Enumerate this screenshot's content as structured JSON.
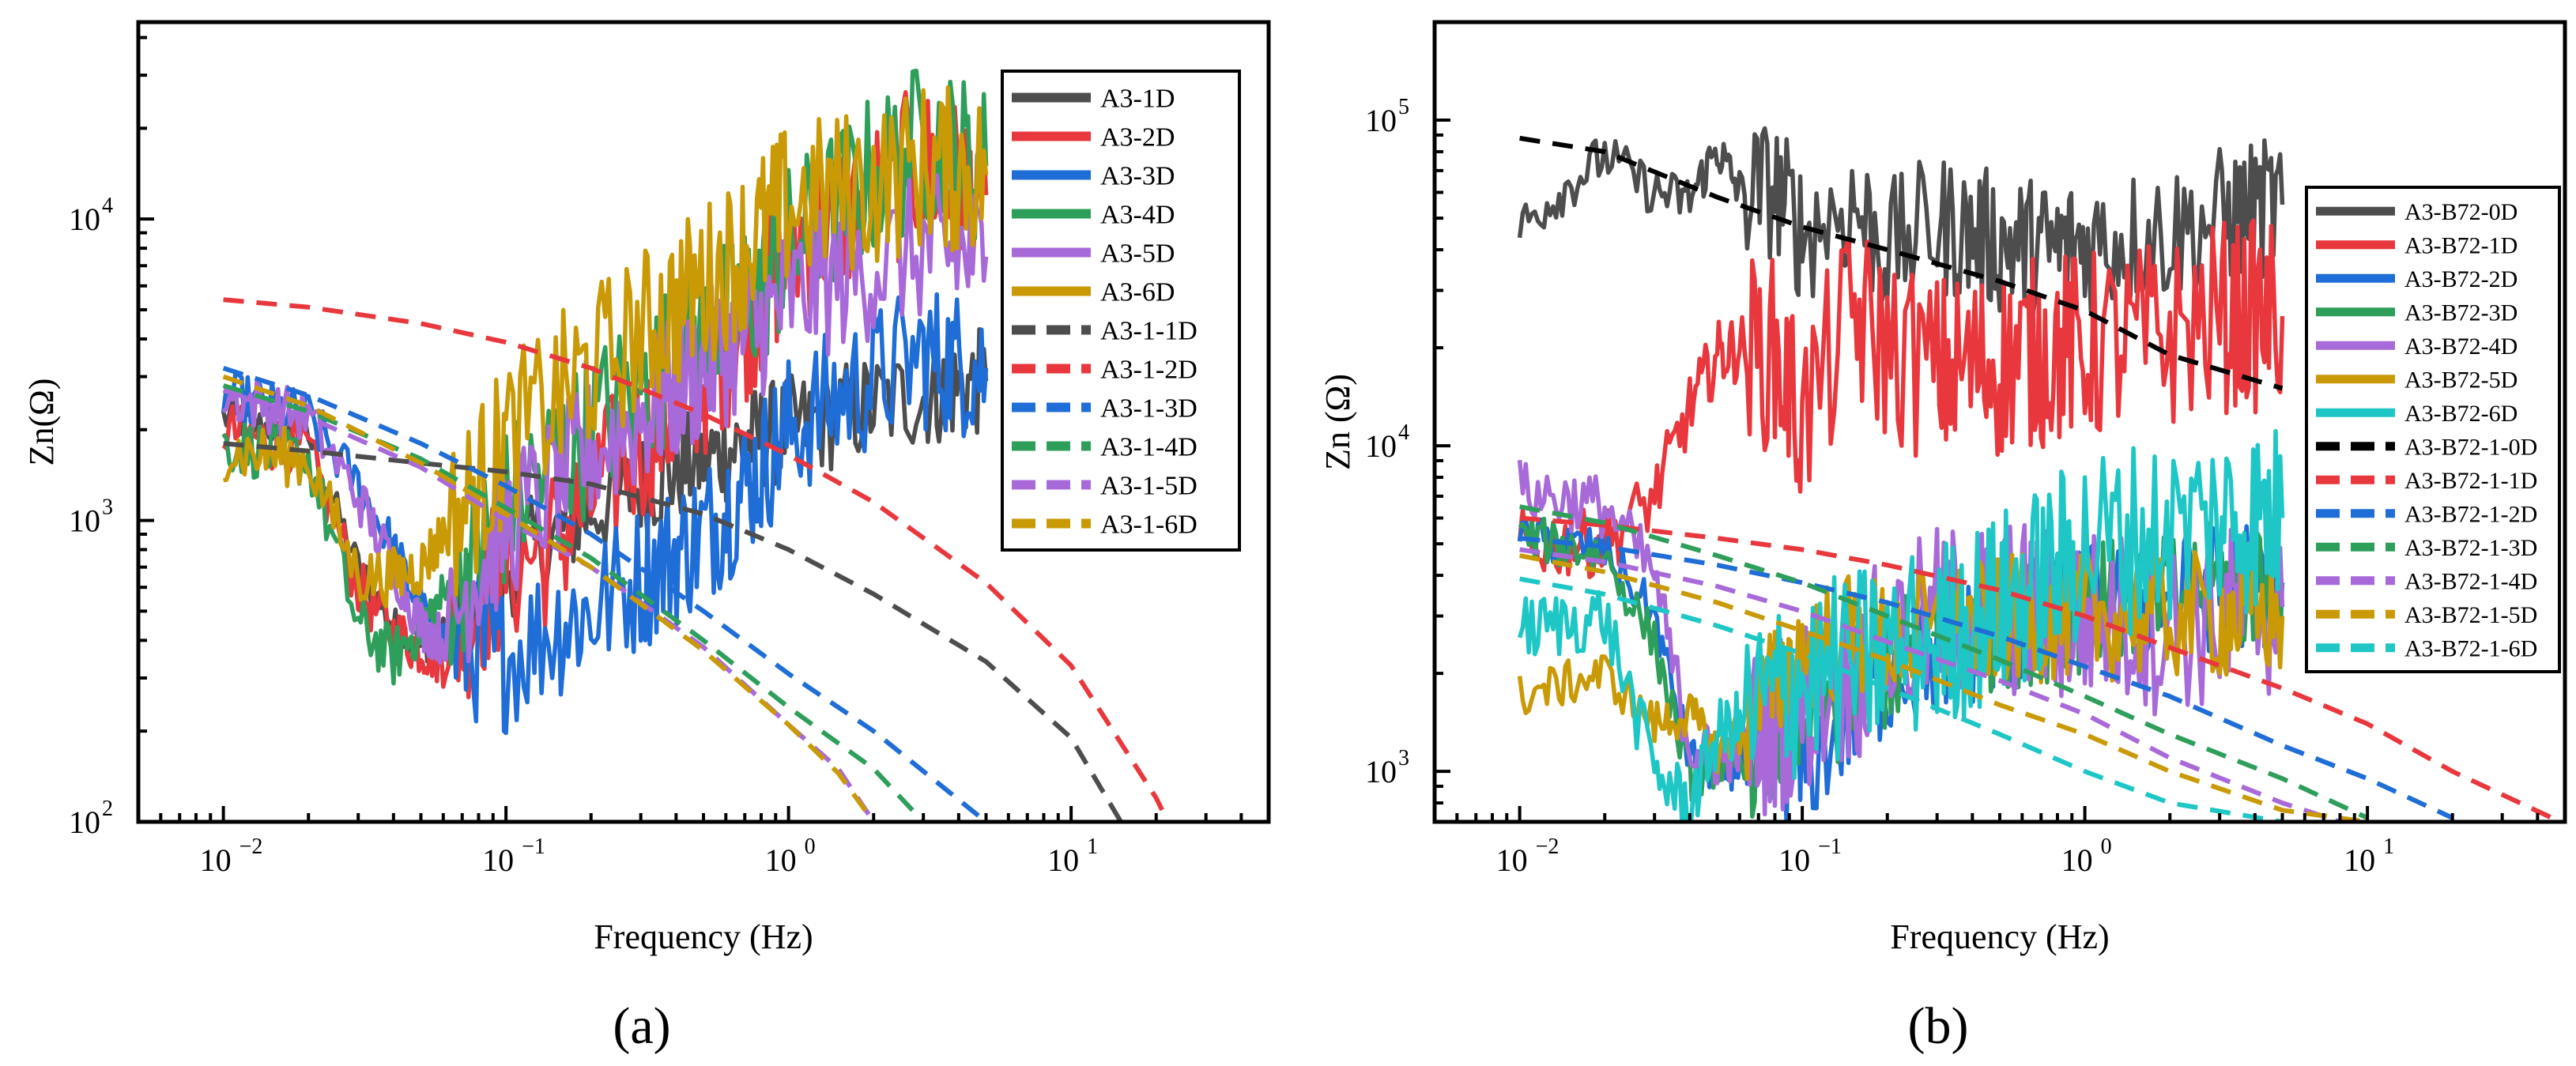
{
  "chart_data": [
    {
      "type": "line",
      "panel_label": "(a)",
      "xlabel": "Frequency (Hz)",
      "ylabel": "Zn(Ω)",
      "xscale": "log",
      "yscale": "log",
      "xlim": [
        0.005,
        50
      ],
      "ylim": [
        100,
        45000
      ],
      "x_ticks": [
        {
          "value": 0.01,
          "base": "10",
          "exp": "−2"
        },
        {
          "value": 0.1,
          "base": "10",
          "exp": "−1"
        },
        {
          "value": 1,
          "base": "10",
          "exp": "0"
        },
        {
          "value": 10,
          "base": "10",
          "exp": "1"
        }
      ],
      "y_ticks": [
        {
          "value": 100,
          "base": "10",
          "exp": "2"
        },
        {
          "value": 1000,
          "base": "10",
          "exp": "3"
        },
        {
          "value": 10000,
          "base": "10",
          "exp": "4"
        }
      ],
      "legend_position": "top-right",
      "series": [
        {
          "name": "A3-1D",
          "color": "#4d4d4d",
          "style": "solid",
          "x": [
            0.01,
            0.02,
            0.03,
            0.04,
            0.05,
            0.06,
            0.08,
            0.1,
            0.15,
            0.2,
            0.3,
            0.5,
            0.8,
            1,
            2,
            3,
            5
          ],
          "y": [
            2200,
            1900,
            700,
            450,
            380,
            420,
            550,
            700,
            900,
            1100,
            1300,
            1600,
            1900,
            2000,
            2400,
            2600,
            2900
          ],
          "noise": 0.18
        },
        {
          "name": "A3-2D",
          "color": "#e8383d",
          "style": "solid",
          "x": [
            0.01,
            0.02,
            0.03,
            0.04,
            0.05,
            0.06,
            0.08,
            0.1,
            0.15,
            0.2,
            0.3,
            0.5,
            0.8,
            1,
            2,
            3,
            5
          ],
          "y": [
            2000,
            1700,
            600,
            420,
            380,
            350,
            550,
            700,
            850,
            1200,
            1800,
            3000,
            5500,
            8000,
            12000,
            15000,
            12000
          ],
          "noise": 0.28
        },
        {
          "name": "A3-3D",
          "color": "#1f6dd6",
          "style": "solid",
          "x": [
            0.01,
            0.02,
            0.03,
            0.04,
            0.05,
            0.06,
            0.08,
            0.1,
            0.15,
            0.2,
            0.3,
            0.5,
            0.8,
            1,
            2,
            3,
            5
          ],
          "y": [
            2600,
            2200,
            1300,
            800,
            500,
            400,
            370,
            350,
            450,
            500,
            650,
            900,
            1500,
            2000,
            3000,
            3500,
            3200
          ],
          "noise": 0.25
        },
        {
          "name": "A3-4D",
          "color": "#2e9e5b",
          "style": "solid",
          "x": [
            0.01,
            0.02,
            0.03,
            0.04,
            0.05,
            0.06,
            0.08,
            0.1,
            0.15,
            0.2,
            0.3,
            0.5,
            0.8,
            1,
            2,
            3,
            5
          ],
          "y": [
            1800,
            1600,
            450,
            350,
            450,
            550,
            800,
            1100,
            1600,
            2000,
            2800,
            4000,
            6000,
            8000,
            14000,
            18000,
            15000
          ],
          "noise": 0.28
        },
        {
          "name": "A3-5D",
          "color": "#a86ad9",
          "style": "solid",
          "x": [
            0.01,
            0.02,
            0.03,
            0.04,
            0.05,
            0.06,
            0.08,
            0.1,
            0.15,
            0.2,
            0.3,
            0.5,
            0.8,
            1,
            2,
            3,
            5
          ],
          "y": [
            2600,
            2200,
            1200,
            700,
            450,
            400,
            700,
            950,
            1300,
            1700,
            2200,
            3200,
            4500,
            5500,
            7000,
            8000,
            7500
          ],
          "noise": 0.25
        },
        {
          "name": "A3-6D",
          "color": "#c99a06",
          "style": "solid",
          "x": [
            0.01,
            0.02,
            0.03,
            0.04,
            0.05,
            0.06,
            0.08,
            0.1,
            0.15,
            0.2,
            0.3,
            0.5,
            0.8,
            1,
            2,
            3,
            5
          ],
          "y": [
            1700,
            1600,
            650,
            650,
            700,
            900,
            1300,
            1800,
            2500,
            3200,
            4200,
            6000,
            9000,
            11000,
            13000,
            15000,
            14000
          ],
          "noise": 0.28
        },
        {
          "name": "A3-1-1D",
          "color": "#4d4d4d",
          "style": "dashed",
          "x": [
            0.01,
            0.02,
            0.05,
            0.1,
            0.2,
            0.5,
            1,
            2,
            5,
            10,
            15
          ],
          "y": [
            1800,
            1700,
            1550,
            1450,
            1320,
            1050,
            800,
            570,
            340,
            190,
            100
          ]
        },
        {
          "name": "A3-1-2D",
          "color": "#e8383d",
          "style": "dashed",
          "x": [
            0.01,
            0.02,
            0.05,
            0.1,
            0.2,
            0.5,
            1,
            2,
            5,
            10,
            20,
            22
          ],
          "y": [
            5400,
            5100,
            4500,
            3900,
            3200,
            2250,
            1650,
            1150,
            620,
            330,
            120,
            100
          ]
        },
        {
          "name": "A3-1-3D",
          "color": "#1f6dd6",
          "style": "dashed",
          "x": [
            0.01,
            0.02,
            0.05,
            0.1,
            0.2,
            0.5,
            1,
            2,
            5
          ],
          "y": [
            3200,
            2600,
            1800,
            1300,
            900,
            500,
            310,
            200,
            100
          ]
        },
        {
          "name": "A3-1-4D",
          "color": "#2e9e5b",
          "style": "dashed",
          "x": [
            0.01,
            0.02,
            0.05,
            0.1,
            0.2,
            0.5,
            1,
            2,
            3
          ],
          "y": [
            2800,
            2300,
            1600,
            1100,
            750,
            400,
            240,
            150,
            100
          ]
        },
        {
          "name": "A3-1-5D",
          "color": "#a86ad9",
          "style": "dashed",
          "x": [
            0.01,
            0.02,
            0.05,
            0.1,
            0.2,
            0.5,
            1,
            1.5,
            2
          ],
          "y": [
            2700,
            2200,
            1500,
            1000,
            700,
            380,
            210,
            150,
            100
          ]
        },
        {
          "name": "A3-1-6D",
          "color": "#c99a06",
          "style": "dashed",
          "x": [
            0.01,
            0.02,
            0.05,
            0.1,
            0.2,
            0.5,
            1,
            1.5,
            2
          ],
          "y": [
            3000,
            2400,
            1550,
            1050,
            700,
            370,
            210,
            145,
            100
          ]
        }
      ]
    },
    {
      "type": "line",
      "panel_label": "(b)",
      "xlabel": "Frequency (Hz)",
      "ylabel": "Zn (Ω)",
      "xscale": "log",
      "yscale": "log",
      "xlim": [
        0.005,
        50
      ],
      "ylim": [
        700,
        200000
      ],
      "x_ticks": [
        {
          "value": 0.01,
          "base": "10",
          "exp": "−2"
        },
        {
          "value": 0.1,
          "base": "10",
          "exp": "−1"
        },
        {
          "value": 1,
          "base": "10",
          "exp": "0"
        },
        {
          "value": 10,
          "base": "10",
          "exp": "1"
        }
      ],
      "y_ticks": [
        {
          "value": 1000,
          "base": "10",
          "exp": "3"
        },
        {
          "value": 10000,
          "base": "10",
          "exp": "4"
        },
        {
          "value": 100000,
          "base": "10",
          "exp": "5"
        }
      ],
      "legend_position": "right",
      "series": [
        {
          "name": "A3-B72-0D",
          "color": "#4d4d4d",
          "style": "solid",
          "x": [
            0.01,
            0.02,
            0.03,
            0.04,
            0.05,
            0.06,
            0.08,
            0.1,
            0.15,
            0.2,
            0.3,
            0.5,
            0.8,
            1,
            2,
            3,
            5
          ],
          "y": [
            47000,
            78000,
            60000,
            57000,
            82000,
            60000,
            62000,
            45000,
            55000,
            40000,
            48000,
            42000,
            40000,
            42000,
            45000,
            50000,
            55000
          ],
          "noise": 0.22
        },
        {
          "name": "A3-B72-1D",
          "color": "#e8383d",
          "style": "solid",
          "x": [
            0.01,
            0.02,
            0.03,
            0.04,
            0.05,
            0.06,
            0.08,
            0.1,
            0.15,
            0.2,
            0.3,
            0.5,
            0.8,
            1,
            2,
            3,
            5
          ],
          "y": [
            5000,
            5000,
            7000,
            13000,
            19000,
            20000,
            19000,
            12000,
            25000,
            20000,
            17000,
            18000,
            20000,
            20000,
            22000,
            25000,
            25000
          ],
          "noise": 0.3
        },
        {
          "name": "A3-B72-2D",
          "color": "#1f6dd6",
          "style": "solid",
          "x": [
            0.01,
            0.02,
            0.03,
            0.04,
            0.05,
            0.06,
            0.08,
            0.1,
            0.15,
            0.2,
            0.3,
            0.5,
            0.8,
            1,
            2,
            3,
            5
          ],
          "y": [
            5200,
            4800,
            3000,
            1100,
            1000,
            1050,
            1100,
            1000,
            1500,
            2000,
            2300,
            2700,
            3000,
            3200,
            3500,
            3700,
            3800
          ],
          "noise": 0.2
        },
        {
          "name": "A3-B72-3D",
          "color": "#2e9e5b",
          "style": "solid",
          "x": [
            0.01,
            0.02,
            0.03,
            0.04,
            0.05,
            0.06,
            0.08,
            0.1,
            0.15,
            0.2,
            0.3,
            0.5,
            0.8,
            1,
            2,
            3,
            5
          ],
          "y": [
            5300,
            4600,
            2500,
            950,
            1050,
            1100,
            1200,
            1300,
            1700,
            2100,
            2500,
            2800,
            3000,
            3200,
            3500,
            3700,
            3800
          ],
          "noise": 0.2
        },
        {
          "name": "A3-B72-4D",
          "color": "#a86ad9",
          "style": "solid",
          "x": [
            0.01,
            0.02,
            0.03,
            0.04,
            0.05,
            0.06,
            0.08,
            0.1,
            0.15,
            0.2,
            0.3,
            0.5,
            0.8,
            1,
            2,
            3,
            5
          ],
          "y": [
            7300,
            6500,
            4000,
            1200,
            1100,
            1200,
            1400,
            1600,
            2000,
            2400,
            3000,
            3200,
            3000,
            3000,
            2800,
            3000,
            3200
          ],
          "noise": 0.28
        },
        {
          "name": "A3-B72-5D",
          "color": "#c99a06",
          "style": "solid",
          "x": [
            0.01,
            0.02,
            0.03,
            0.04,
            0.05,
            0.06,
            0.08,
            0.1,
            0.15,
            0.2,
            0.3,
            0.5,
            0.8,
            1,
            2,
            3,
            5
          ],
          "y": [
            1700,
            2000,
            1400,
            1500,
            1150,
            1300,
            1800,
            2400,
            2600,
            2500,
            2700,
            2900,
            3000,
            3000,
            3000,
            3000,
            3000
          ],
          "noise": 0.2
        },
        {
          "name": "A3-B72-6D",
          "color": "#1ec6c6",
          "style": "solid",
          "x": [
            0.01,
            0.02,
            0.03,
            0.04,
            0.05,
            0.06,
            0.08,
            0.1,
            0.15,
            0.2,
            0.3,
            0.5,
            0.8,
            1,
            2,
            3,
            5
          ],
          "y": [
            2700,
            3000,
            1000,
            780,
            1300,
            1400,
            1700,
            1900,
            2100,
            2300,
            2600,
            3200,
            4200,
            5000,
            5500,
            6000,
            6000
          ],
          "noise": 0.3
        },
        {
          "name": "A3-B72-1-0D",
          "color": "#000000",
          "style": "dashed",
          "x": [
            0.01,
            0.02,
            0.05,
            0.1,
            0.2,
            0.5,
            1,
            2,
            5
          ],
          "y": [
            88000,
            80000,
            58000,
            47000,
            40000,
            32000,
            26000,
            19000,
            15000
          ]
        },
        {
          "name": "A3-B72-1-1D",
          "color": "#e8383d",
          "style": "dashed",
          "x": [
            0.01,
            0.02,
            0.05,
            0.1,
            0.2,
            0.5,
            1,
            2,
            5,
            10,
            20,
            45
          ],
          "y": [
            6000,
            5700,
            5200,
            4800,
            4300,
            3600,
            3000,
            2400,
            1800,
            1400,
            1000,
            720
          ]
        },
        {
          "name": "A3-B72-1-2D",
          "color": "#1f6dd6",
          "style": "dashed",
          "x": [
            0.01,
            0.02,
            0.05,
            0.1,
            0.2,
            0.5,
            1,
            2,
            5,
            10,
            20
          ],
          "y": [
            5200,
            4900,
            4300,
            3800,
            3300,
            2600,
            2100,
            1700,
            1200,
            950,
            720
          ]
        },
        {
          "name": "A3-B72-1-3D",
          "color": "#2e9e5b",
          "style": "dashed",
          "x": [
            0.01,
            0.02,
            0.05,
            0.1,
            0.2,
            0.5,
            1,
            2,
            5,
            10
          ],
          "y": [
            6500,
            5800,
            4600,
            3800,
            3000,
            2200,
            1700,
            1300,
            950,
            720
          ]
        },
        {
          "name": "A3-B72-1-4D",
          "color": "#a86ad9",
          "style": "dashed",
          "x": [
            0.01,
            0.02,
            0.05,
            0.1,
            0.2,
            0.5,
            1,
            2,
            5,
            8
          ],
          "y": [
            4800,
            4400,
            3700,
            3100,
            2500,
            1900,
            1500,
            1100,
            800,
            700
          ]
        },
        {
          "name": "A3-B72-1-5D",
          "color": "#c99a06",
          "style": "dashed",
          "x": [
            0.01,
            0.02,
            0.05,
            0.1,
            0.2,
            0.5,
            1,
            2,
            5,
            10
          ],
          "y": [
            4600,
            4100,
            3300,
            2700,
            2200,
            1600,
            1300,
            1000,
            760,
            700
          ]
        },
        {
          "name": "A3-B72-1-6D",
          "color": "#1ec6c6",
          "style": "dashed",
          "x": [
            0.01,
            0.02,
            0.05,
            0.1,
            0.2,
            0.5,
            1,
            2,
            5
          ],
          "y": [
            3900,
            3500,
            2800,
            2300,
            1800,
            1300,
            1000,
            800,
            700
          ]
        }
      ]
    }
  ]
}
